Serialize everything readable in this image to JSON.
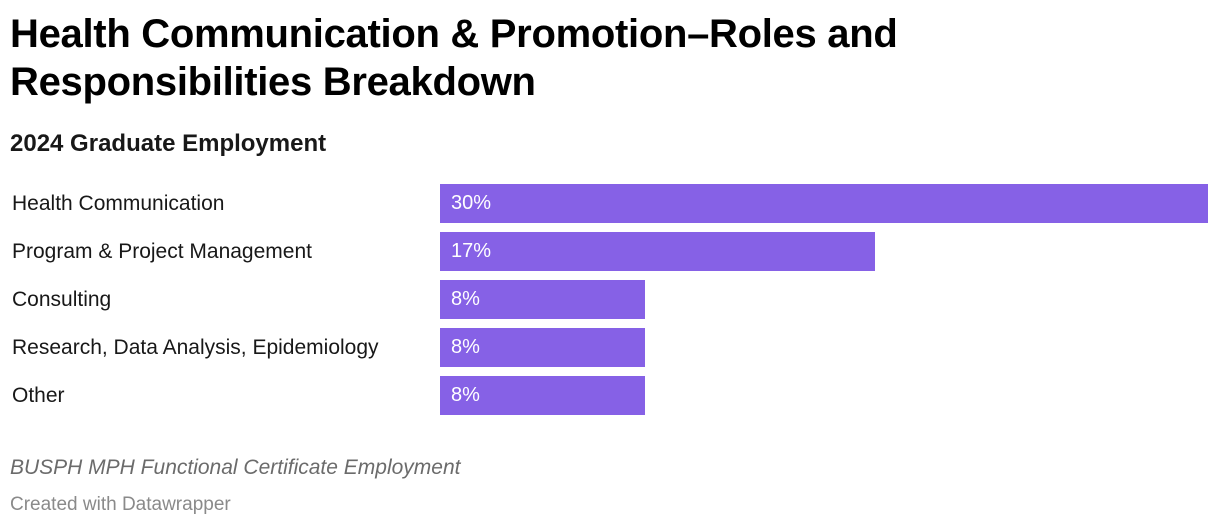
{
  "header": {
    "title": "Health Communication & Promotion–Roles and Responsibilities Breakdown",
    "subtitle": "2024 Graduate Employment"
  },
  "footer": {
    "notes": "BUSPH MPH Functional Certificate Employment",
    "credit": "Created with Datawrapper"
  },
  "colors": {
    "bar": "#8661e6",
    "bar_label": "#ffffff"
  },
  "rows": [
    {
      "label": "Health Communication",
      "value_label": "30%"
    },
    {
      "label": "Program & Project Management",
      "value_label": "17%"
    },
    {
      "label": "Consulting",
      "value_label": "8%"
    },
    {
      "label": "Research, Data Analysis, Epidemiology",
      "value_label": "8%"
    },
    {
      "label": "Other",
      "value_label": "8%"
    }
  ],
  "chart_data": {
    "type": "bar",
    "orientation": "horizontal",
    "title": "Health Communication & Promotion–Roles and Responsibilities Breakdown",
    "subtitle": "2024 Graduate Employment",
    "categories": [
      "Health Communication",
      "Program & Project Management",
      "Consulting",
      "Research, Data Analysis, Epidemiology",
      "Other"
    ],
    "values": [
      30,
      17,
      8,
      8,
      8
    ],
    "unit": "%",
    "xlabel": "",
    "ylabel": "",
    "xlim": [
      0,
      30
    ],
    "grid": false,
    "legend": null,
    "notes": "BUSPH MPH Functional Certificate Employment",
    "source_credit": "Created with Datawrapper"
  }
}
